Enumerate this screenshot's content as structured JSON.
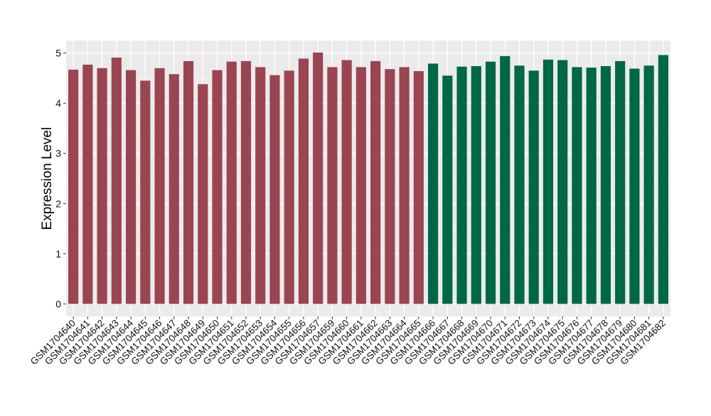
{
  "chart_data": {
    "type": "bar",
    "title": "",
    "xlabel": "",
    "ylabel": "Expression Level",
    "ylim": [
      -0.25,
      5.25
    ],
    "yticks": [
      0,
      1,
      2,
      3,
      4,
      5
    ],
    "grid": true,
    "legend": "none",
    "colors": {
      "group1": "#9b4452",
      "group2": "#006747",
      "panel": "#ebebeb",
      "grid": "#ffffff"
    },
    "categories": [
      "GSM1704640",
      "GSM1704641",
      "GSM1704642",
      "GSM1704643",
      "GSM1704644",
      "GSM1704645",
      "GSM1704646",
      "GSM1704647",
      "GSM1704648",
      "GSM1704649",
      "GSM1704650",
      "GSM1704651",
      "GSM1704652",
      "GSM1704653",
      "GSM1704654",
      "GSM1704655",
      "GSM1704656",
      "GSM1704657",
      "GSM1704659",
      "GSM1704660",
      "GSM1704661",
      "GSM1704662",
      "GSM1704663",
      "GSM1704664",
      "GSM1704665",
      "GSM1704666",
      "GSM1704667",
      "GSM1704668",
      "GSM1704669",
      "GSM1704670",
      "GSM1704671",
      "GSM1704672",
      "GSM1704673",
      "GSM1704674",
      "GSM1704675",
      "GSM1704676",
      "GSM1704677",
      "GSM1704678",
      "GSM1704679",
      "GSM1704680",
      "GSM1704681",
      "GSM1704682"
    ],
    "values": [
      4.67,
      4.77,
      4.7,
      4.91,
      4.66,
      4.45,
      4.7,
      4.58,
      4.84,
      4.38,
      4.66,
      4.83,
      4.84,
      4.72,
      4.56,
      4.65,
      4.89,
      5.01,
      4.72,
      4.86,
      4.72,
      4.84,
      4.68,
      4.72,
      4.64,
      4.79,
      4.55,
      4.73,
      4.74,
      4.83,
      4.94,
      4.75,
      4.65,
      4.87,
      4.86,
      4.72,
      4.71,
      4.74,
      4.84,
      4.69,
      4.75,
      4.96
    ],
    "groups": [
      1,
      1,
      1,
      1,
      1,
      1,
      1,
      1,
      1,
      1,
      1,
      1,
      1,
      1,
      1,
      1,
      1,
      1,
      1,
      1,
      1,
      1,
      1,
      1,
      1,
      2,
      2,
      2,
      2,
      2,
      2,
      2,
      2,
      2,
      2,
      2,
      2,
      2,
      2,
      2,
      2,
      2
    ]
  }
}
